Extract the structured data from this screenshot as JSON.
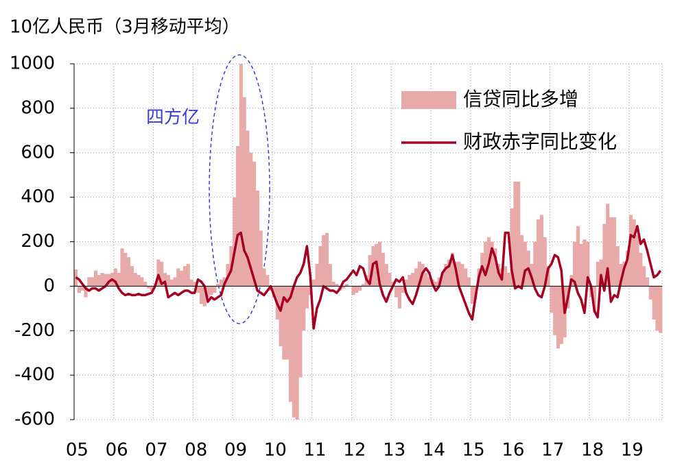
{
  "chart_data": {
    "type": "bar-line",
    "title": "10亿人民币（3月移动平均）",
    "annotation": "四方亿",
    "categories": [
      "05",
      null,
      null,
      null,
      null,
      null,
      null,
      null,
      null,
      null,
      null,
      null,
      "06",
      null,
      null,
      null,
      null,
      null,
      null,
      null,
      null,
      null,
      null,
      null,
      "07",
      null,
      null,
      null,
      null,
      null,
      null,
      null,
      null,
      null,
      null,
      null,
      "08",
      null,
      null,
      null,
      null,
      null,
      null,
      null,
      null,
      null,
      null,
      null,
      "09",
      null,
      null,
      null,
      null,
      null,
      null,
      null,
      null,
      null,
      null,
      null,
      "10",
      null,
      null,
      null,
      null,
      null,
      null,
      null,
      null,
      null,
      null,
      null,
      "11",
      null,
      null,
      null,
      null,
      null,
      null,
      null,
      null,
      null,
      null,
      null,
      "12",
      null,
      null,
      null,
      null,
      null,
      null,
      null,
      null,
      null,
      null,
      null,
      "13",
      null,
      null,
      null,
      null,
      null,
      null,
      null,
      null,
      null,
      null,
      null,
      "14",
      null,
      null,
      null,
      null,
      null,
      null,
      null,
      null,
      null,
      null,
      null,
      "15",
      null,
      null,
      null,
      null,
      null,
      null,
      null,
      null,
      null,
      null,
      null,
      "16",
      null,
      null,
      null,
      null,
      null,
      null,
      null,
      null,
      null,
      null,
      null,
      "17",
      null,
      null,
      null,
      null,
      null,
      null,
      null,
      null,
      null,
      null,
      null,
      "18",
      null,
      null,
      null,
      null,
      null,
      null,
      null,
      null,
      null,
      null,
      null,
      "19",
      null,
      null,
      null,
      null,
      null,
      null,
      null,
      null,
      null
    ],
    "series": [
      {
        "name": "信贷同比多增",
        "type": "bar",
        "color": "#e8a9a9",
        "values": [
          75,
          -30,
          -20,
          -50,
          40,
          40,
          70,
          50,
          60,
          55,
          55,
          60,
          80,
          60,
          170,
          150,
          130,
          90,
          60,
          50,
          40,
          20,
          -10,
          -20,
          10,
          120,
          110,
          60,
          50,
          30,
          40,
          80,
          70,
          90,
          100,
          30,
          20,
          -30,
          -80,
          -90,
          -50,
          -40,
          -30,
          10,
          30,
          40,
          100,
          180,
          400,
          630,
          1000,
          850,
          700,
          600,
          560,
          430,
          250,
          80,
          50,
          -20,
          -50,
          -150,
          -270,
          -330,
          -330,
          -520,
          -590,
          -600,
          -410,
          -200,
          -100,
          -40,
          30,
          100,
          180,
          230,
          240,
          100,
          20,
          10,
          -20,
          -10,
          10,
          0,
          -40,
          -30,
          -20,
          10,
          50,
          140,
          180,
          190,
          200,
          150,
          100,
          60,
          20,
          -50,
          -100,
          -30,
          30,
          50,
          60,
          80,
          110,
          100,
          60,
          40,
          30,
          20,
          40,
          60,
          100,
          120,
          150,
          110,
          110,
          100,
          80,
          40,
          -80,
          -60,
          80,
          150,
          200,
          220,
          200,
          170,
          100,
          80,
          90,
          60,
          350,
          470,
          470,
          230,
          200,
          160,
          100,
          200,
          300,
          320,
          220,
          90,
          -120,
          -220,
          -280,
          -260,
          -230,
          -100,
          50,
          200,
          270,
          190,
          210,
          200,
          -50,
          -120,
          110,
          120,
          280,
          370,
          310,
          310,
          180,
          100,
          110,
          160,
          320,
          300,
          230,
          150,
          90,
          40,
          -60,
          -150,
          -200,
          -210
        ]
      },
      {
        "name": "财政赤字同比变化",
        "type": "line",
        "color": "#a50021",
        "values": [
          40,
          30,
          10,
          -10,
          -20,
          -10,
          -10,
          -20,
          -10,
          0,
          20,
          30,
          20,
          -10,
          -30,
          -40,
          -35,
          -40,
          -40,
          -35,
          -40,
          -40,
          -35,
          -30,
          0,
          50,
          10,
          20,
          -50,
          -40,
          -30,
          -40,
          -30,
          -20,
          -20,
          -30,
          -30,
          30,
          20,
          0,
          -70,
          -50,
          -60,
          -50,
          -40,
          10,
          40,
          70,
          150,
          230,
          240,
          160,
          130,
          80,
          30,
          -20,
          -30,
          -40,
          -20,
          0,
          -40,
          -80,
          -110,
          -50,
          -70,
          -50,
          0,
          40,
          60,
          100,
          180,
          50,
          -190,
          -100,
          -60,
          0,
          -10,
          -20,
          -20,
          -30,
          -10,
          20,
          30,
          50,
          70,
          50,
          90,
          80,
          30,
          10,
          100,
          110,
          10,
          -40,
          -70,
          -30,
          0,
          30,
          20,
          40,
          -30,
          -60,
          -80,
          -40,
          10,
          60,
          80,
          60,
          10,
          -20,
          0,
          60,
          80,
          90,
          140,
          80,
          0,
          -40,
          -80,
          -120,
          -150,
          -50,
          40,
          90,
          50,
          100,
          170,
          130,
          60,
          30,
          240,
          240,
          70,
          -10,
          0,
          -10,
          70,
          80,
          40,
          -10,
          -40,
          -50,
          0,
          80,
          100,
          140,
          130,
          70,
          -120,
          -50,
          30,
          20,
          -30,
          -60,
          -120,
          40,
          0,
          -110,
          -140,
          50,
          -20,
          80,
          -70,
          -40,
          -50,
          20,
          80,
          120,
          230,
          220,
          270,
          190,
          210,
          160,
          100,
          40,
          50,
          70
        ]
      }
    ],
    "ylim": [
      -600,
      1000
    ],
    "yticks": [
      -600,
      -400,
      -200,
      0,
      200,
      400,
      600,
      800,
      1000
    ],
    "grid": true
  }
}
